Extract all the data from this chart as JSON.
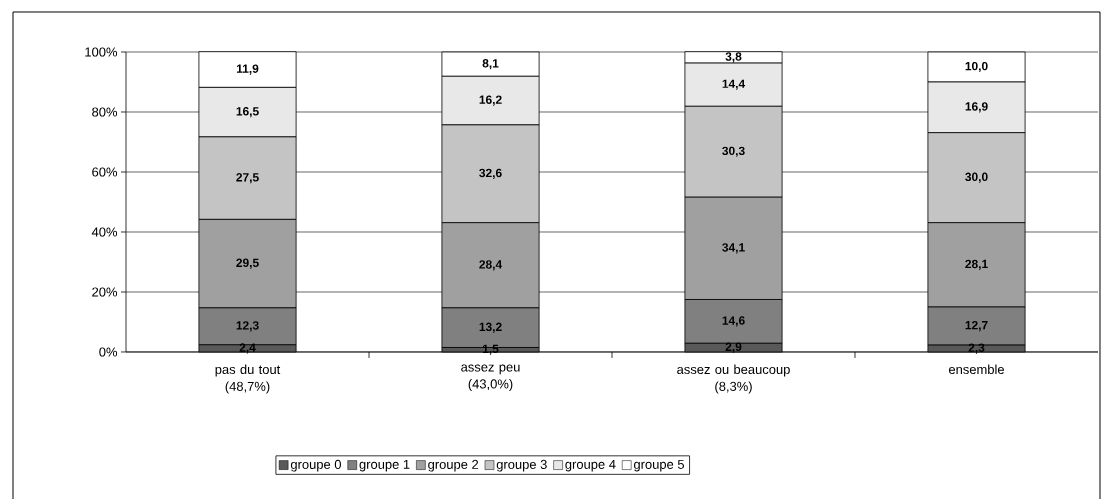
{
  "chart_data": {
    "type": "bar",
    "stacked": true,
    "categories": [
      "pas du tout (48,7%)",
      "assez peu (43,0%)",
      "assez ou beaucoup (8,3%)",
      "ensemble"
    ],
    "ylim": [
      0,
      100
    ],
    "yticks": [
      {
        "value": 0,
        "label": "0%"
      },
      {
        "value": 20,
        "label": "20%"
      },
      {
        "value": 40,
        "label": "40%"
      },
      {
        "value": 60,
        "label": "60%"
      },
      {
        "value": 80,
        "label": "80%"
      },
      {
        "value": 100,
        "label": "100%"
      }
    ],
    "grid": "y",
    "legend": "bottom",
    "series": [
      {
        "name": "groupe 0",
        "color": "#595959",
        "values": [
          2.4,
          1.5,
          2.9,
          2.3
        ],
        "value_labels": [
          "2,4",
          "1,5",
          "2,9",
          "2,3"
        ]
      },
      {
        "name": "groupe 1",
        "color": "#808080",
        "values": [
          12.3,
          13.2,
          14.6,
          12.7
        ],
        "value_labels": [
          "12,3",
          "13,2",
          "14,6",
          "12,7"
        ]
      },
      {
        "name": "groupe 2",
        "color": "#a0a0a0",
        "values": [
          29.5,
          28.4,
          34.1,
          28.1
        ],
        "value_labels": [
          "29,5",
          "28,4",
          "34,1",
          "28,1"
        ]
      },
      {
        "name": "groupe 3",
        "color": "#c4c4c4",
        "values": [
          27.5,
          32.6,
          30.3,
          30.0
        ],
        "value_labels": [
          "27,5",
          "32,6",
          "30,3",
          "30,0"
        ]
      },
      {
        "name": "groupe 4",
        "color": "#e8e8e8",
        "values": [
          16.5,
          16.2,
          14.4,
          16.9
        ],
        "value_labels": [
          "16,5",
          "16,2",
          "14,4",
          "16,9"
        ]
      },
      {
        "name": "groupe 5",
        "color": "#ffffff",
        "values": [
          11.9,
          8.1,
          3.8,
          10.0
        ],
        "value_labels": [
          "11,9",
          "8,1",
          "3,8",
          "10,0"
        ]
      }
    ]
  }
}
